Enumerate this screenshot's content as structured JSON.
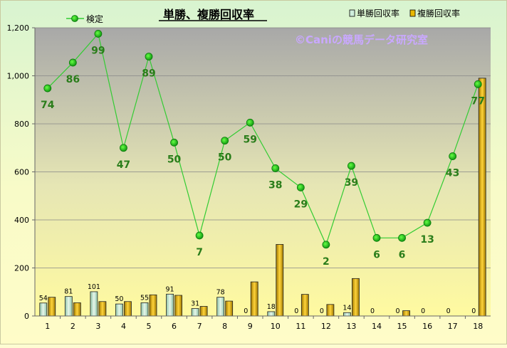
{
  "chart_data": {
    "type": "bar+line",
    "title": "単勝、複勝回収率",
    "watermark": "©Caniの競馬データ研究室",
    "categories": [
      "1",
      "2",
      "3",
      "4",
      "5",
      "6",
      "7",
      "8",
      "9",
      "10",
      "11",
      "12",
      "13",
      "14",
      "15",
      "16",
      "17",
      "18"
    ],
    "ylim": [
      0,
      1200
    ],
    "yticks": [
      "0",
      "200",
      "400",
      "600",
      "800",
      "1,000",
      "1,200"
    ],
    "ytick_values": [
      0,
      200,
      400,
      600,
      800,
      1000,
      1200
    ],
    "legend": {
      "line_label": "検定",
      "series_labels": [
        "単勝回収率",
        "複勝回収率"
      ]
    },
    "series": [
      {
        "name": "単勝回収率",
        "type": "bar",
        "color": "#b8e0c8",
        "values": [
          54,
          81,
          101,
          50,
          55,
          91,
          31,
          78,
          0,
          18,
          0,
          0,
          14,
          0,
          0,
          0,
          0,
          0
        ],
        "labels": [
          "54",
          "81",
          "101",
          "50",
          "55",
          "91",
          "31",
          "78",
          "0",
          "18",
          "0",
          "0",
          "14",
          "0",
          "0",
          "0",
          "0",
          "0"
        ]
      },
      {
        "name": "複勝回収率",
        "type": "bar",
        "color": "#e0b000",
        "values": [
          78,
          55,
          60,
          60,
          88,
          86,
          40,
          62,
          142,
          298,
          90,
          48,
          156,
          0,
          22,
          0,
          0,
          990
        ]
      },
      {
        "name": "検定",
        "type": "line",
        "color": "#22cc22",
        "values": [
          948,
          1055,
          1175,
          700,
          1080,
          722,
          335,
          730,
          805,
          615,
          535,
          297,
          625,
          325,
          325,
          388,
          665,
          965
        ],
        "labels": [
          "74",
          "86",
          "99",
          "47",
          "89",
          "50",
          "7",
          "50",
          "59",
          "38",
          "29",
          "2",
          "39",
          "6",
          "6",
          "13",
          "43",
          "77"
        ]
      }
    ],
    "colors": {
      "plot_top": "#a8a8a8",
      "plot_bottom": "#fffaa0",
      "label_green": "#2a7d1a",
      "title": "#000000",
      "watermark": "#c9a8ff"
    }
  }
}
